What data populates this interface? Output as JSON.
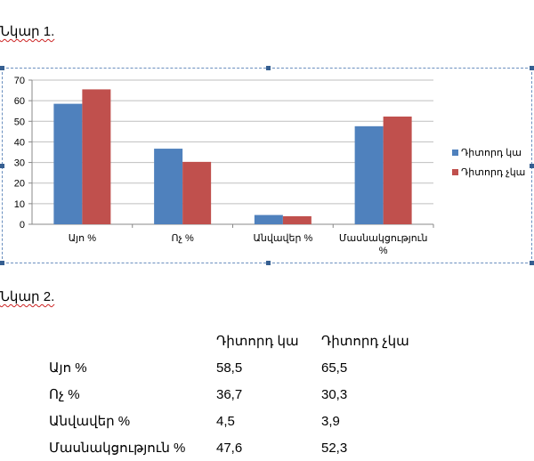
{
  "captions": {
    "figure1": "Նկար 1.",
    "figure2": "Նկար 2."
  },
  "colors": {
    "series1": "#4f81bd",
    "series2": "#c0504d",
    "grid": "#bfbfbf",
    "frame": "#6a8fbf"
  },
  "chart_data": {
    "type": "bar",
    "categories": [
      "Այո %",
      "Ոչ %",
      "Անվավեր %",
      "Մասնակցություն %"
    ],
    "series": [
      {
        "name": "Դիտորդ կա",
        "values": [
          58.5,
          36.7,
          4.5,
          47.6
        ]
      },
      {
        "name": "Դիտորդ չկա",
        "values": [
          65.5,
          30.3,
          3.9,
          52.3
        ]
      }
    ],
    "ylim": [
      0,
      70
    ],
    "yticks": [
      0,
      10,
      20,
      30,
      40,
      50,
      60,
      70
    ],
    "grid": true,
    "legend": "right"
  },
  "table": {
    "headers": [
      "",
      "Դիտորդ կա",
      "Դիտորդ չկա"
    ],
    "rows": [
      [
        "Այո %",
        "58,5",
        "65,5"
      ],
      [
        "Ոչ %",
        "36,7",
        "30,3"
      ],
      [
        "Անվավեր %",
        "4,5",
        "3,9"
      ],
      [
        "Մասնակցություն %",
        "47,6",
        "52,3"
      ]
    ]
  }
}
